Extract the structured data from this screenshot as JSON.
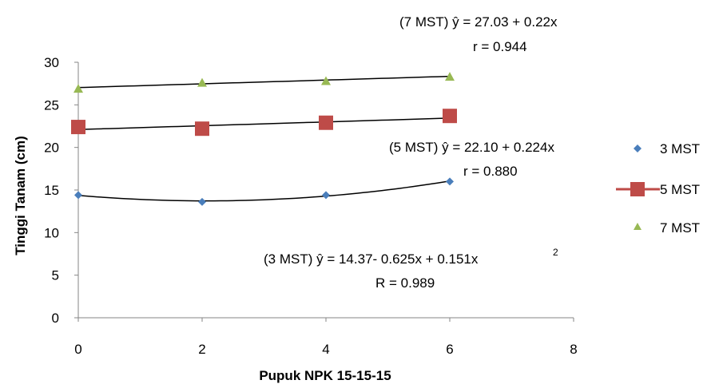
{
  "chart_data": {
    "type": "scatter",
    "title": "",
    "xlabel": "Pupuk NPK 15-15-15",
    "ylabel": "Tinggi Tanam (cm)",
    "xlim": [
      0,
      8
    ],
    "ylim": [
      0,
      30
    ],
    "x_ticks": [
      "0",
      "2",
      "4",
      "6",
      "8"
    ],
    "y_ticks": [
      "0",
      "5",
      "10",
      "15",
      "20",
      "25",
      "30"
    ],
    "grid": false,
    "legend_position": "right",
    "series": [
      {
        "name": "3 MST",
        "marker": "diamond",
        "color": "#4a7ebb",
        "x": [
          0,
          2,
          4,
          6
        ],
        "y": [
          14.4,
          13.6,
          14.4,
          16.0
        ],
        "fit": {
          "kind": "quadratic",
          "coefficients": [
            14.37,
            -0.625,
            0.151
          ]
        }
      },
      {
        "name": "5 MST",
        "marker": "square",
        "color": "#be4b48",
        "x": [
          0,
          2,
          4,
          6
        ],
        "y": [
          22.4,
          22.2,
          22.9,
          23.7
        ],
        "fit": {
          "kind": "linear",
          "coefficients": [
            22.1,
            0.224
          ]
        }
      },
      {
        "name": "7 MST",
        "marker": "triangle",
        "color": "#98b954",
        "x": [
          0,
          2,
          4,
          6
        ],
        "y": [
          26.9,
          27.6,
          27.8,
          28.3
        ],
        "fit": {
          "kind": "linear",
          "coefficients": [
            27.03,
            0.22
          ]
        }
      }
    ],
    "annotations": {
      "eq7": "(7 MST) ŷ =  27.03 + 0.22x",
      "r7": "r = 0.944",
      "eq5": "(5 MST) ŷ = 22.10 + 0.224x",
      "r5": "r = 0.880",
      "eq3_main": "(3 MST) ŷ = 14.37- 0.625x + 0.151x",
      "eq3_sup": "2",
      "r3": "R = 0.989"
    }
  }
}
